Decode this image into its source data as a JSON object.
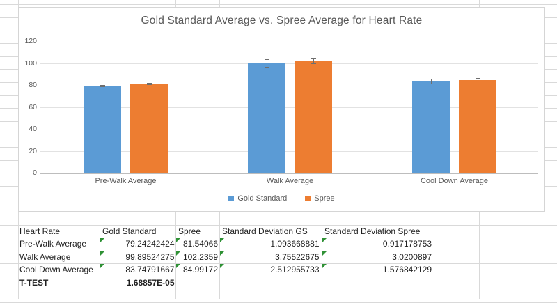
{
  "chart_data": {
    "type": "bar",
    "title": "Gold Standard Average vs. Spree Average for Heart Rate",
    "categories": [
      "Pre-Walk Average",
      "Walk Average",
      "Cool Down Average"
    ],
    "series": [
      {
        "name": "Gold Standard",
        "color": "#5B9BD5",
        "values": [
          79.24242424,
          99.89524275,
          83.74791667
        ],
        "errors": [
          1.093668881,
          3.75522675,
          2.512955733
        ]
      },
      {
        "name": "Spree",
        "color": "#ED7D31",
        "values": [
          81.54066,
          102.2359,
          84.99172
        ],
        "errors": [
          0.917178753,
          3.0200897,
          1.576842129
        ]
      }
    ],
    "ylim": [
      0,
      120
    ],
    "yticks": [
      0,
      20,
      40,
      60,
      80,
      100,
      120
    ],
    "grid": true,
    "legend_position": "bottom",
    "error_bars": true
  },
  "table": {
    "headers": [
      "Heart Rate",
      "Gold Standard",
      "Spree",
      "Standard Deviation GS",
      "Standard Deviation Spree"
    ],
    "rows": [
      {
        "label": "Pre-Walk Average",
        "values": [
          "79.24242424",
          "81.54066",
          "1.093668881",
          "0.917178753"
        ],
        "bold": false,
        "flags": true
      },
      {
        "label": "Walk Average",
        "values": [
          "99.89524275",
          "102.2359",
          "3.75522675",
          "3.0200897"
        ],
        "bold": false,
        "flags": true
      },
      {
        "label": "Cool Down Average",
        "values": [
          "83.74791667",
          "84.99172",
          "2.512955733",
          "1.576842129"
        ],
        "bold": false,
        "flags": true
      },
      {
        "label": "T-TEST",
        "values": [
          "1.68857E-05",
          "",
          "",
          ""
        ],
        "bold": true,
        "flags": false
      }
    ]
  },
  "colors": {
    "sheet_grid": "#d9d9d9",
    "chart_grid": "#e2e2e2",
    "axis_line": "#bdbdbd",
    "axis_text": "#595959",
    "table_text": "#1f1f1f",
    "error_flag_green": "#2f9135",
    "error_bar": "#6e6e6e"
  }
}
